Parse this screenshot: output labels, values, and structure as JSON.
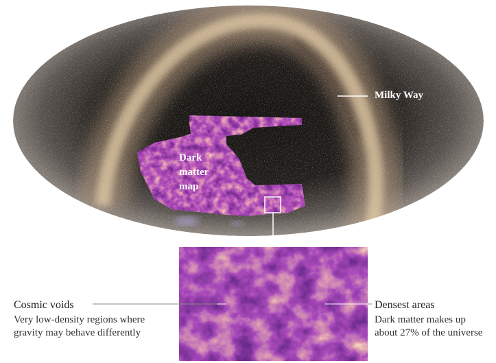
{
  "milky_way": {
    "label": "Milky Way"
  },
  "dark_matter_map": {
    "label": "Dark matter map"
  },
  "cosmic_voids": {
    "title": "Cosmic voids",
    "text": "Very low-density regions where gravity may behave differently"
  },
  "densest_areas": {
    "title": "Densest areas",
    "text": "Dark matter makes up about 27% of the universe"
  }
}
